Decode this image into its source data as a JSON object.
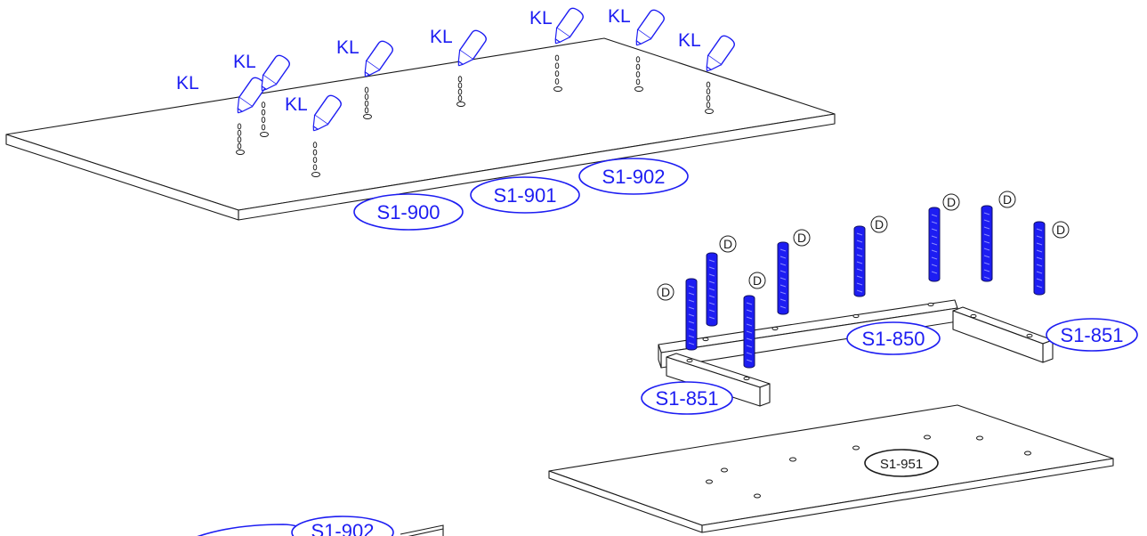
{
  "figure": {
    "glue_label": "KL",
    "dowel_label": "D",
    "part_labels": {
      "panel_front": "S1-900",
      "panel_middle": "S1-901",
      "panel_back": "S1-902",
      "rail_long": "S1-850",
      "rail_short_right": "S1-851",
      "rail_short_left": "S1-851",
      "bottom_panel": "S1-951",
      "next_step_panel": "S1-902"
    }
  },
  "colors": {
    "accent": "#1d1df2",
    "line": "#1a1a1a",
    "background": "#ffffff"
  }
}
